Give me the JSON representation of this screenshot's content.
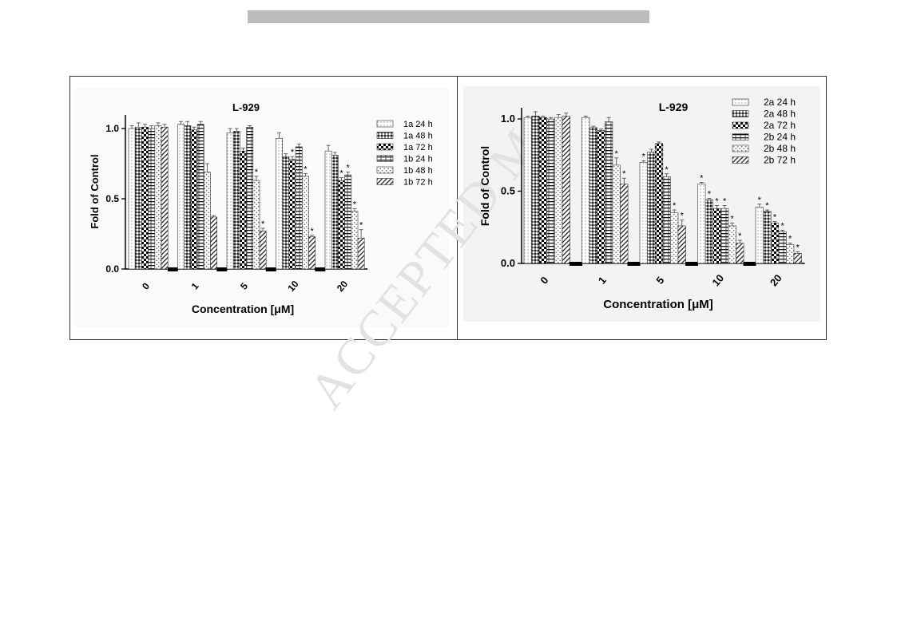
{
  "watermark": "ACCEPTED M",
  "chart_data": [
    {
      "type": "bar",
      "title": "L-929",
      "xlabel": "Concentration [μM]",
      "ylabel": "Fold of Control",
      "ylim": [
        0,
        1.1
      ],
      "yticks": [
        "0.0",
        "0.5",
        "1.0"
      ],
      "categories": [
        "0",
        "1",
        "5",
        "10",
        "20"
      ],
      "legend_position": "right",
      "series": [
        {
          "name": "1a 24 h",
          "pattern": "dots",
          "values": [
            1.0,
            1.03,
            0.97,
            0.93,
            0.84
          ],
          "errors": [
            0.02,
            0.02,
            0.03,
            0.04,
            0.04
          ],
          "sig": [
            false,
            false,
            false,
            false,
            false
          ]
        },
        {
          "name": "1a 48 h",
          "pattern": "diamond",
          "values": [
            1.01,
            1.02,
            0.98,
            0.8,
            0.81
          ],
          "errors": [
            0.03,
            0.03,
            0.02,
            0.02,
            0.02
          ],
          "sig": [
            false,
            false,
            false,
            false,
            false
          ]
        },
        {
          "name": "1a 72 h",
          "pattern": "checker",
          "values": [
            1.01,
            0.99,
            0.84,
            0.78,
            0.63
          ],
          "errors": [
            0.02,
            0.02,
            0.02,
            0.02,
            0.02
          ],
          "sig": [
            false,
            false,
            false,
            true,
            true
          ]
        },
        {
          "name": "1b 24 h",
          "pattern": "hbrick",
          "values": [
            1.0,
            1.03,
            1.01,
            0.87,
            0.67
          ],
          "errors": [
            0.02,
            0.02,
            0.01,
            0.02,
            0.02
          ],
          "sig": [
            false,
            false,
            false,
            false,
            true
          ]
        },
        {
          "name": "1b 48 h",
          "pattern": "vdots",
          "values": [
            1.02,
            0.69,
            0.63,
            0.66,
            0.41
          ],
          "errors": [
            0.02,
            0.06,
            0.03,
            0.02,
            0.02
          ],
          "sig": [
            false,
            false,
            true,
            true,
            true
          ]
        },
        {
          "name": "1b 72 h",
          "pattern": "diag",
          "values": [
            1.01,
            0.37,
            0.27,
            0.23,
            0.22
          ],
          "errors": [
            0.02,
            0.01,
            0.02,
            0.01,
            0.06
          ],
          "sig": [
            false,
            false,
            true,
            true,
            true
          ]
        }
      ]
    },
    {
      "type": "bar",
      "title": "L-929",
      "xlabel": "Concentration [μM]",
      "ylabel": "Fold of Control",
      "ylim": [
        0,
        1.1
      ],
      "yticks": [
        "0.0",
        "0.5",
        "1.0"
      ],
      "categories": [
        "0",
        "1",
        "5",
        "10",
        "20"
      ],
      "legend_position": "top-right",
      "series": [
        {
          "name": "2a 24 h",
          "pattern": "dots",
          "values": [
            1.01,
            1.01,
            0.7,
            0.55,
            0.39
          ],
          "errors": [
            0.01,
            0.01,
            0.01,
            0.01,
            0.02
          ],
          "sig": [
            false,
            false,
            true,
            true,
            true
          ]
        },
        {
          "name": "2a 48 h",
          "pattern": "diamond",
          "values": [
            1.02,
            0.94,
            0.77,
            0.44,
            0.36
          ],
          "errors": [
            0.03,
            0.01,
            0.02,
            0.01,
            0.01
          ],
          "sig": [
            false,
            false,
            false,
            true,
            true
          ]
        },
        {
          "name": "2a 72 h",
          "pattern": "checker",
          "values": [
            1.01,
            0.92,
            0.83,
            0.38,
            0.28
          ],
          "errors": [
            0.01,
            0.01,
            0.01,
            0.02,
            0.01
          ],
          "sig": [
            false,
            false,
            false,
            true,
            true
          ]
        },
        {
          "name": "2b 24 h",
          "pattern": "hbrick",
          "values": [
            1.0,
            0.98,
            0.6,
            0.38,
            0.22
          ],
          "errors": [
            0.01,
            0.03,
            0.02,
            0.02,
            0.01
          ],
          "sig": [
            false,
            false,
            true,
            true,
            true
          ]
        },
        {
          "name": "2b 48 h",
          "pattern": "vdots",
          "values": [
            1.01,
            0.68,
            0.35,
            0.26,
            0.13
          ],
          "errors": [
            0.02,
            0.05,
            0.02,
            0.02,
            0.01
          ],
          "sig": [
            false,
            true,
            true,
            true,
            true
          ]
        },
        {
          "name": "2b 72 h",
          "pattern": "diag",
          "values": [
            1.02,
            0.55,
            0.26,
            0.14,
            0.07
          ],
          "errors": [
            0.02,
            0.04,
            0.04,
            0.02,
            0.01
          ],
          "sig": [
            false,
            true,
            true,
            true,
            true
          ]
        }
      ]
    }
  ]
}
